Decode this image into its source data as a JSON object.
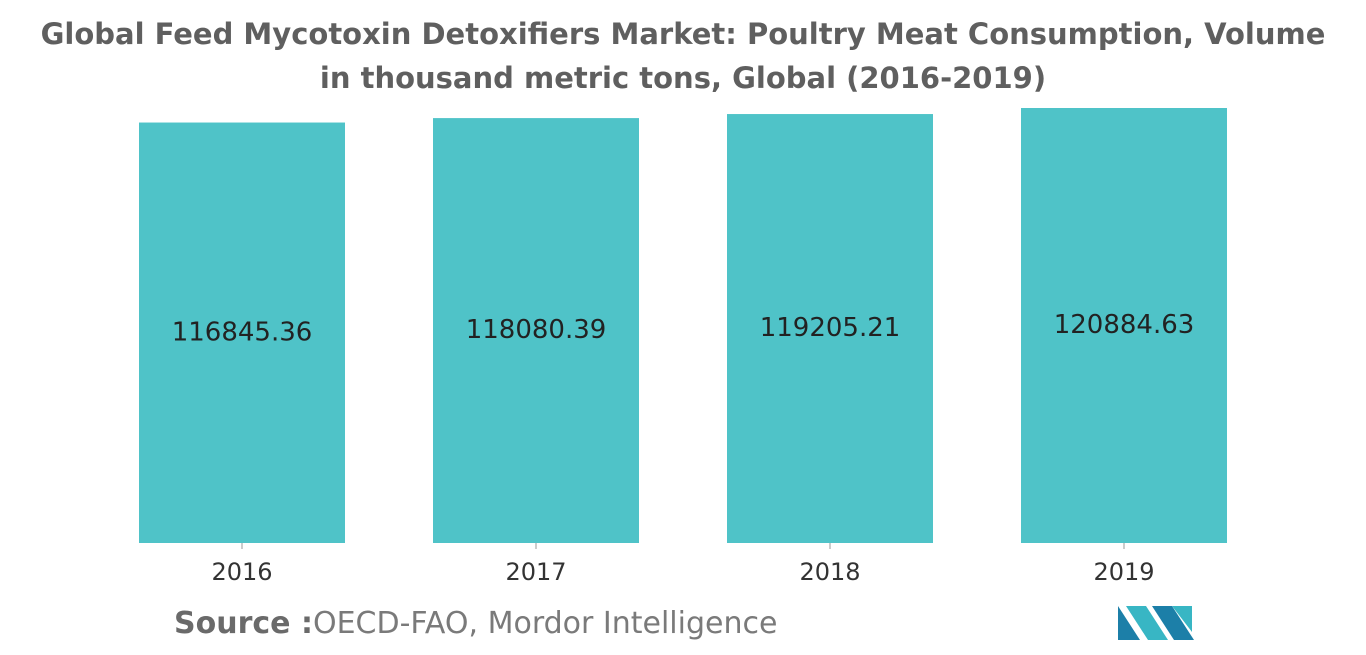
{
  "chart_data": {
    "type": "bar",
    "title": "Global Feed Mycotoxin Detoxifiers Market: Poultry Meat Consumption, Volume in thousand metric tons, Global (2016-2019)",
    "categories": [
      "2016",
      "2017",
      "2018",
      "2019"
    ],
    "values": [
      116845.36,
      118080.39,
      119205.21,
      120884.63
    ],
    "color": "#4fc3c8",
    "source": {
      "label": "Source :",
      "text": "OECD-FAO, Mordor Intelligence"
    }
  }
}
